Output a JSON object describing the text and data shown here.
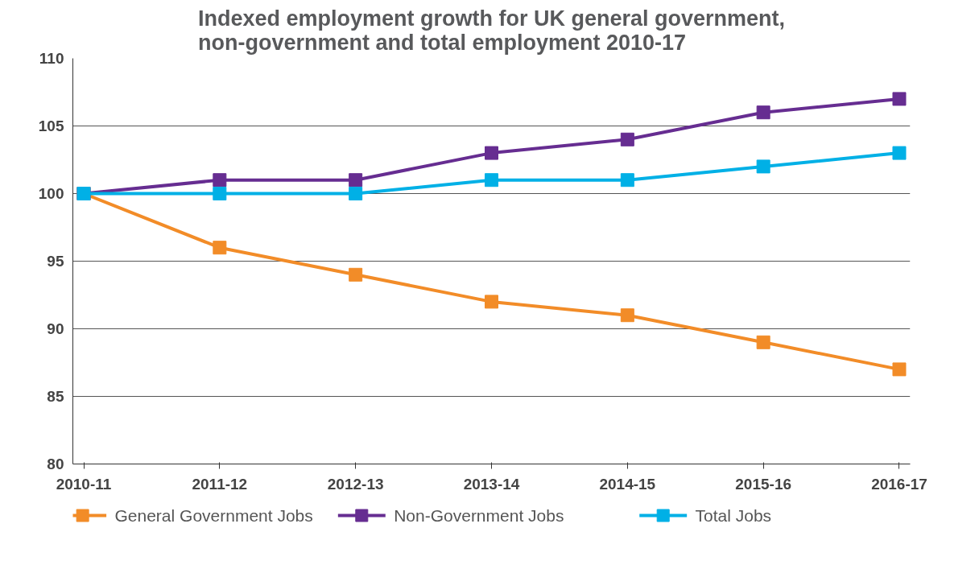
{
  "chart_data": {
    "type": "line",
    "title": "Indexed employment growth for UK general government,\nnon-government and total employment 2010-17",
    "categories": [
      "2010-11",
      "2011-12",
      "2012-13",
      "2013-14",
      "2014-15",
      "2015-16",
      "2016-17"
    ],
    "series": [
      {
        "name": "General Government Jobs",
        "color": "#f28c28",
        "values": [
          100,
          96,
          94,
          92,
          91,
          89,
          87
        ]
      },
      {
        "name": "Non-Government Jobs",
        "color": "#662d91",
        "values": [
          100,
          101,
          101,
          103,
          104,
          106,
          107
        ]
      },
      {
        "name": "Total Jobs",
        "color": "#00b0e6",
        "values": [
          100,
          100,
          100,
          101,
          101,
          102,
          103
        ]
      }
    ],
    "ylim": [
      80,
      110
    ],
    "yticks": [
      80,
      85,
      90,
      95,
      100,
      105,
      110
    ],
    "grid": "y",
    "legend": "bottom",
    "marker": "square",
    "line_style": "solid"
  }
}
